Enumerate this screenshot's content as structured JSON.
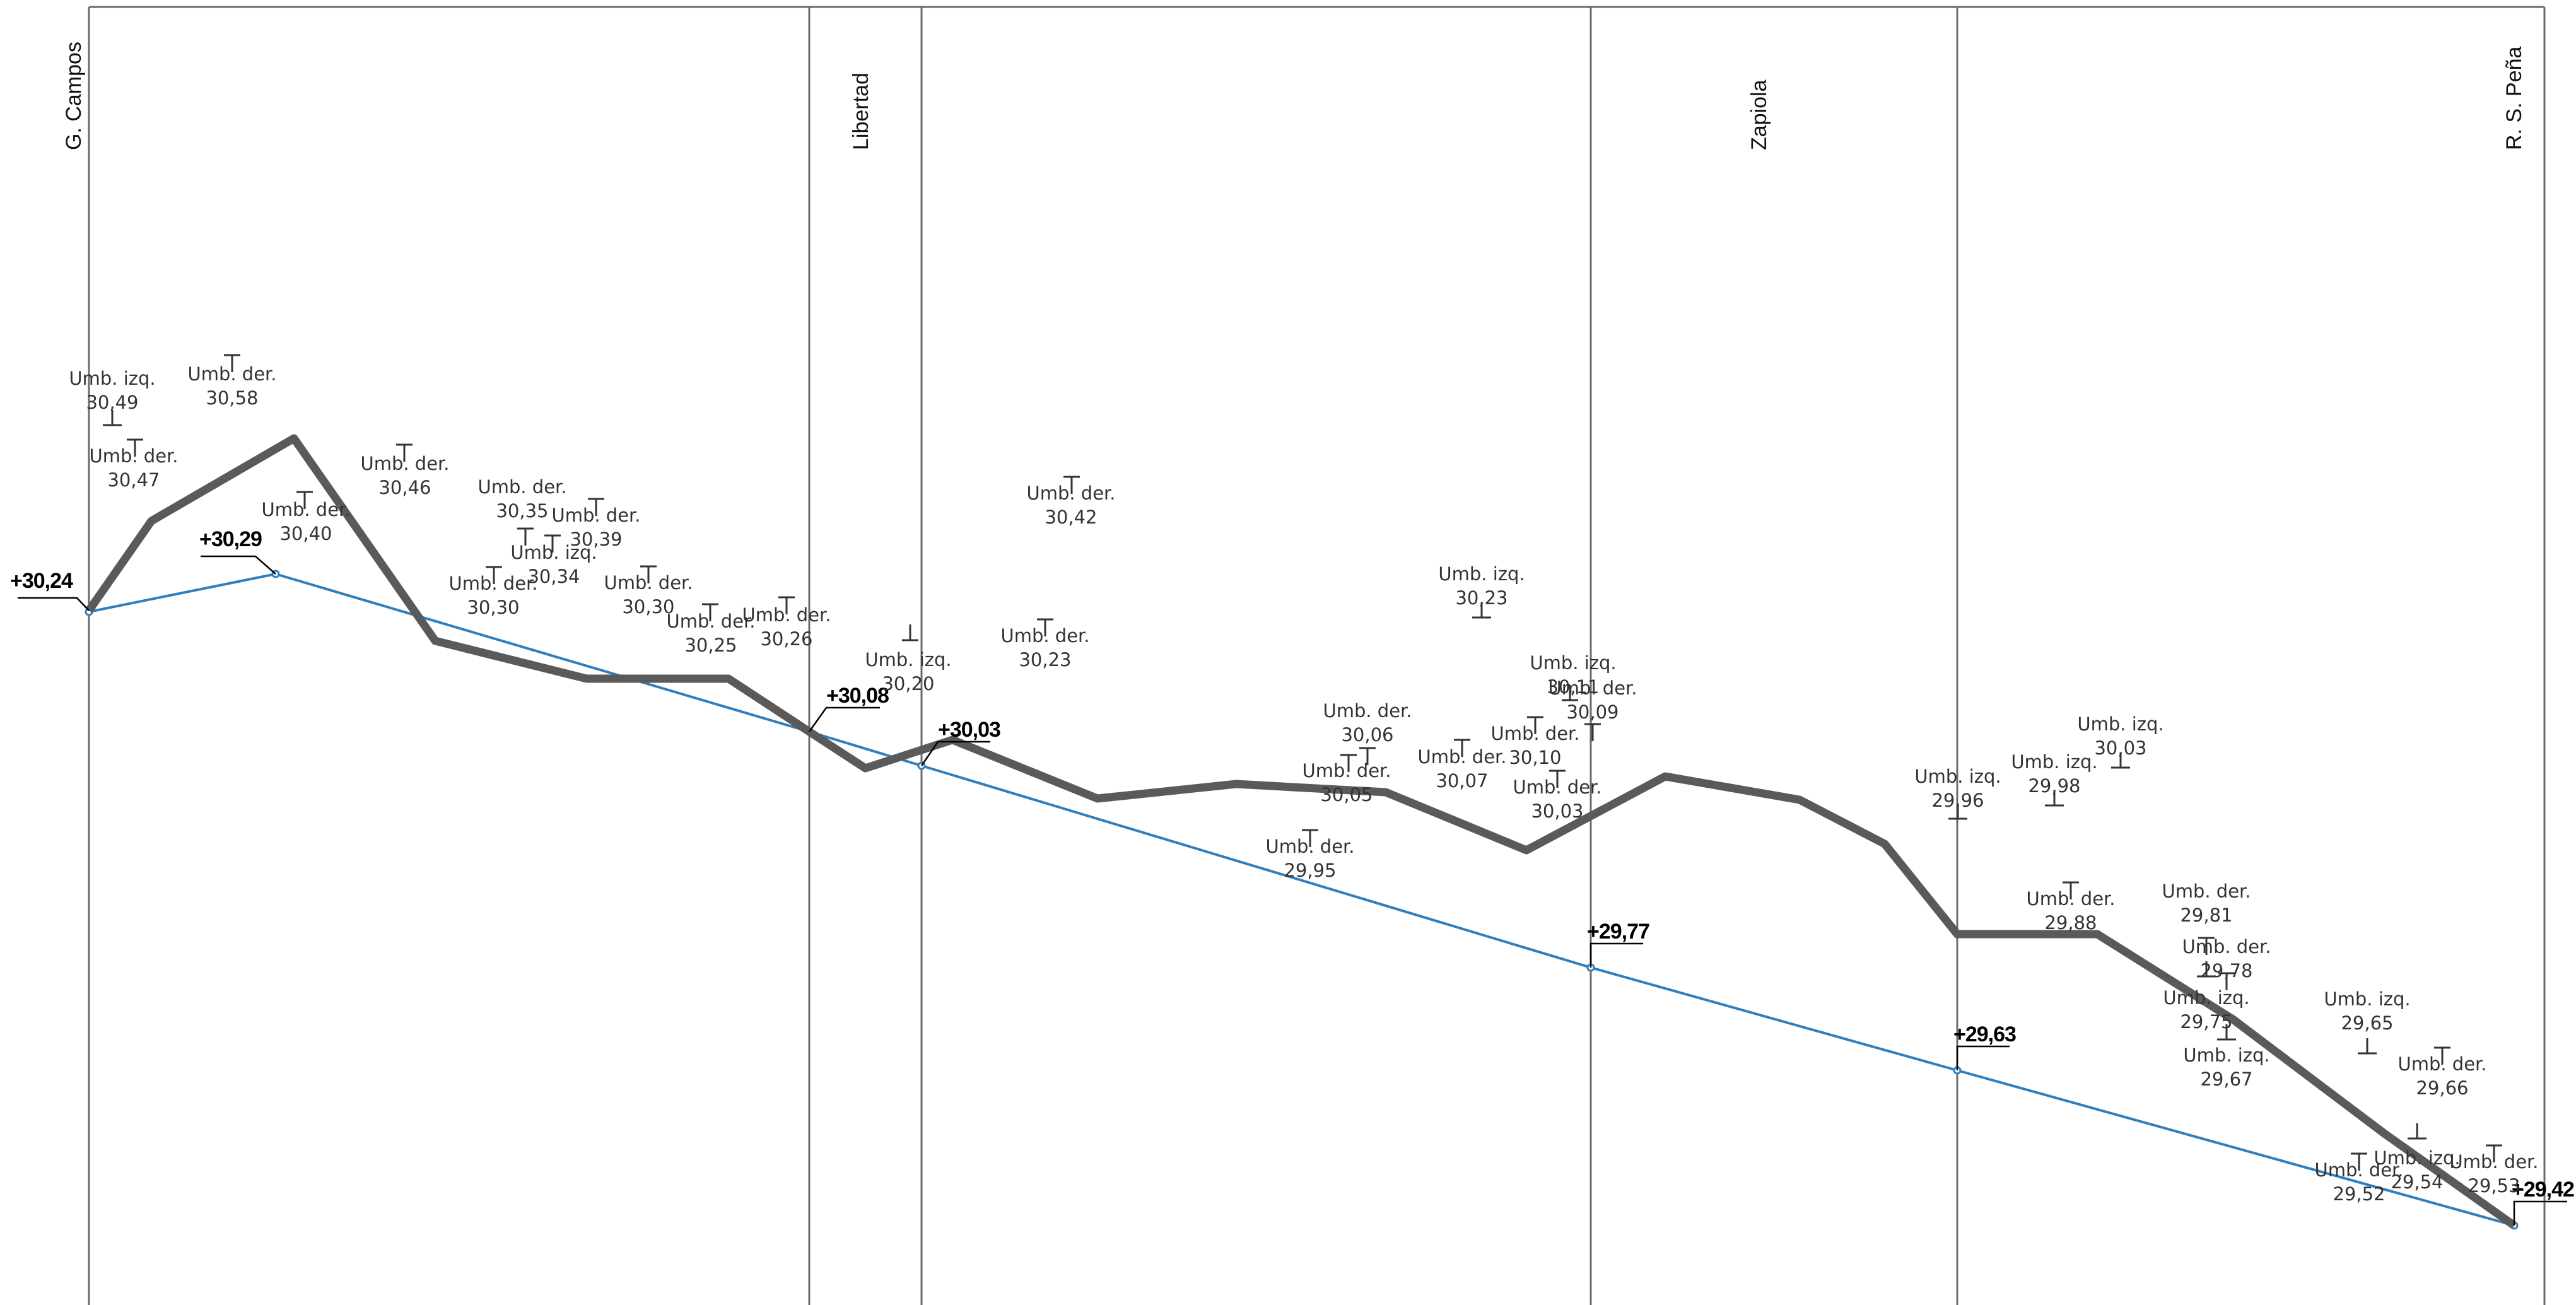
{
  "colors": {
    "frame": "#6b6b6b",
    "terrain": "#5a5a5a",
    "design": "#2f7fbf",
    "label": "#333333",
    "benchmark": "#000000"
  },
  "stations": [
    {
      "name": "G. Campos"
    },
    {
      "name": "Libertad"
    },
    {
      "name": "Zapiola"
    },
    {
      "name": "R. S. Peña"
    }
  ],
  "benchmarks": [
    {
      "label": "+30,24"
    },
    {
      "label": "+30,29"
    },
    {
      "label": "+30,08"
    },
    {
      "label": "+30,03"
    },
    {
      "label": "+29,77"
    },
    {
      "label": "+29,63"
    },
    {
      "label": "+29,42"
    }
  ],
  "thresholds": [
    {
      "side": "Umb. izq.",
      "value": "30,49"
    },
    {
      "side": "Umb. der.",
      "value": "30,58"
    },
    {
      "side": "Umb. der.",
      "value": "30,47"
    },
    {
      "side": "Umb. der.",
      "value": "30,40"
    },
    {
      "side": "Umb. der.",
      "value": "30,46"
    },
    {
      "side": "Umb. der.",
      "value": "30,35"
    },
    {
      "side": "Umb. der.",
      "value": "30,39"
    },
    {
      "side": "Umb. izq.",
      "value": "30,34"
    },
    {
      "side": "Umb. der.",
      "value": "30,30"
    },
    {
      "side": "Umb. der.",
      "value": "30,30"
    },
    {
      "side": "Umb. der.",
      "value": "30,25"
    },
    {
      "side": "Umb. der.",
      "value": "30,26"
    },
    {
      "side": "Umb. izq.",
      "value": "30,20"
    },
    {
      "side": "Umb. der.",
      "value": "30,42"
    },
    {
      "side": "Umb. der.",
      "value": "30,23"
    },
    {
      "side": "Umb. der.",
      "value": "30,06"
    },
    {
      "side": "Umb. der.",
      "value": "30,05"
    },
    {
      "side": "Umb. der.",
      "value": "29,95"
    },
    {
      "side": "Umb. izq.",
      "value": "30,23"
    },
    {
      "side": "Umb. izq.",
      "value": "30,11"
    },
    {
      "side": "Umb. der.",
      "value": "30,09"
    },
    {
      "side": "Umb. der.",
      "value": "30,07"
    },
    {
      "side": "Umb. der.",
      "value": "30,10"
    },
    {
      "side": "Umb. der.",
      "value": "30,03"
    },
    {
      "side": "Umb. izq.",
      "value": "29,96"
    },
    {
      "side": "Umb. izq.",
      "value": "29,98"
    },
    {
      "side": "Umb. izq.",
      "value": "30,03"
    },
    {
      "side": "Umb. der.",
      "value": "29,88"
    },
    {
      "side": "Umb. der.",
      "value": "29,81"
    },
    {
      "side": "Umb. der.",
      "value": "29,78"
    },
    {
      "side": "Umb. izq.",
      "value": "29,75"
    },
    {
      "side": "Umb. izq.",
      "value": "29,67"
    },
    {
      "side": "Umb. izq.",
      "value": "29,65"
    },
    {
      "side": "Umb. der.",
      "value": "29,66"
    },
    {
      "side": "Umb. der.",
      "value": "29,52"
    },
    {
      "side": "Umb. izq.",
      "value": "29,54"
    },
    {
      "side": "Umb. der.",
      "value": "29,53"
    }
  ]
}
